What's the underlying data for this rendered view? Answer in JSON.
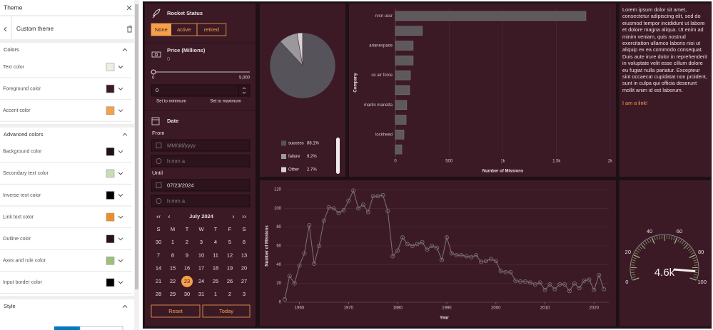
{
  "sidebar": {
    "title": "Theme",
    "theme_name": "Custom theme",
    "sections": [
      {
        "title": "Colors",
        "items": [
          {
            "label": "Text color",
            "color": "#eaf1e4"
          },
          {
            "label": "Foreground color",
            "color": "#3b1a26"
          },
          {
            "label": "Accent color",
            "color": "#f5a04a"
          }
        ]
      },
      {
        "title": "Advanced colors",
        "items": [
          {
            "label": "Background color",
            "color": "#1e1014"
          },
          {
            "label": "Secondary text color",
            "color": "#c6deb8"
          },
          {
            "label": "Inverse text color",
            "color": "#000000"
          },
          {
            "label": "Link text color",
            "color": "#f08c28"
          },
          {
            "label": "Outline color",
            "color": "#2b1219"
          },
          {
            "label": "Axes and rule color",
            "color": "#9cc07c"
          },
          {
            "label": "Input border color",
            "color": "#000000"
          }
        ]
      },
      {
        "title": "Style"
      }
    ]
  },
  "rocket_status": {
    "title": "Rocket Status",
    "filters": [
      "None",
      "active",
      "retired"
    ],
    "selected_filter": 0,
    "price": {
      "title": "Price (Millions)",
      "value": "0",
      "slider_min": "0",
      "slider_max": "5,000",
      "input": "0",
      "set_min": "Set to minimum",
      "set_max": "Set to maximum"
    },
    "date": {
      "title": "Date",
      "from_label": "From",
      "from_date": "MM/dd/yyyy",
      "from_time": "h:mm a",
      "until_label": "Until",
      "until_date": "07/23/2024",
      "until_time": "h:mm a",
      "month": "July 2024",
      "weekdays": [
        "S",
        "M",
        "T",
        "W",
        "T",
        "F",
        "S"
      ],
      "days": [
        [
          30,
          1,
          2,
          3,
          4,
          5,
          6
        ],
        [
          7,
          8,
          9,
          10,
          11,
          12,
          13
        ],
        [
          14,
          15,
          16,
          17,
          18,
          19,
          20
        ],
        [
          21,
          22,
          23,
          24,
          25,
          26,
          27
        ],
        [
          28,
          29,
          30,
          31,
          1,
          2,
          3
        ]
      ],
      "selected_day": 23
    },
    "reset": "Reset",
    "today": "Today"
  },
  "text_panel": {
    "body": "Lorem ipsum dolor sit amet, consectetur adipiscing elit, sed do eiusmod tempor incididunt ut labore et dolore magna aliqua. Ut enim ad minim veniam, quis nostrud exercitation ullamco laboris nisi ut aliquip ex ea commodo consequat. Duis aute irure dolor in reprehenderit in voluptate velit esse cillum dolore eu fugiat nulla pariatur. Excepteur sint occaecat cupidatat non proident, sunt in culpa qui officia deserunt mollit anim id est laborum.",
    "link": "I am a link!"
  },
  "chart_data": [
    {
      "type": "pie",
      "categories": [
        "success",
        "failure",
        "Other"
      ],
      "values": [
        88.1,
        9.2,
        2.7
      ],
      "value_labels": [
        "88.1%",
        "9.2%",
        "2.7%"
      ],
      "colors": [
        "#57535a",
        "#9b989d",
        "#d6d4d6"
      ]
    },
    {
      "type": "bar",
      "orientation": "horizontal",
      "categories": [
        "rvsn ussr",
        null,
        "arianespace",
        null,
        "us air force",
        null,
        "martin marietta",
        null,
        "lockheed",
        null
      ],
      "values": [
        1774,
        252,
        166,
        166,
        140,
        133,
        106,
        100,
        80,
        60
      ],
      "color": "#5e595c",
      "xlim": [
        0,
        2000
      ],
      "xticks": [
        0,
        500,
        {
          "value": 1000,
          "label": "1k"
        },
        {
          "value": 1500,
          "label": "1.5k"
        },
        {
          "value": 2000,
          "label": "2k"
        }
      ],
      "xlabel": "Number of Missions",
      "ylabel": "Company",
      "grid": true
    },
    {
      "type": "line",
      "x": [
        1957,
        1958,
        1959,
        1960,
        1961,
        1962,
        1963,
        1964,
        1965,
        1966,
        1967,
        1968,
        1969,
        1970,
        1971,
        1972,
        1973,
        1974,
        1975,
        1976,
        1977,
        1978,
        1979,
        1980,
        1981,
        1982,
        1983,
        1984,
        1985,
        1986,
        1987,
        1988,
        1989,
        1990,
        1991,
        1992,
        1993,
        1994,
        1995,
        1996,
        1997,
        1998,
        1999,
        2000,
        2001,
        2002,
        2003,
        2004,
        2005,
        2006,
        2007,
        2008,
        2009,
        2010,
        2011,
        2012,
        2013,
        2014,
        2015,
        2016,
        2017,
        2018,
        2019,
        2020,
        2021,
        2022
      ],
      "values": [
        3,
        28,
        20,
        39,
        52,
        82,
        41,
        60,
        87,
        101,
        100,
        95,
        98,
        108,
        119,
        100,
        104,
        96,
        113,
        113,
        114,
        97,
        49,
        55,
        69,
        62,
        60,
        62,
        64,
        56,
        60,
        58,
        45,
        69,
        52,
        50,
        50,
        49,
        48,
        50,
        43,
        44,
        46,
        44,
        33,
        32,
        32,
        23,
        22,
        22,
        21,
        19,
        21,
        13,
        19,
        14,
        19,
        19,
        12,
        20,
        15,
        23,
        24,
        13,
        29,
        14
      ],
      "color": "#7d7378",
      "xlim": [
        1956,
        2023
      ],
      "xticks": [
        1960,
        1970,
        1980,
        1990,
        2000,
        2010,
        2020
      ],
      "ylim": [
        0,
        120
      ],
      "yticks": [
        0,
        20,
        40,
        60,
        80,
        100,
        120
      ],
      "xlabel": "Year",
      "ylabel": "Number of Missions",
      "grid": true
    },
    {
      "type": "gauge",
      "ylim": [
        0,
        100
      ],
      "yticks": [
        0,
        20,
        40,
        60,
        80,
        100
      ],
      "value": 93,
      "label": "4.6k",
      "color": "#9cc07c"
    }
  ]
}
